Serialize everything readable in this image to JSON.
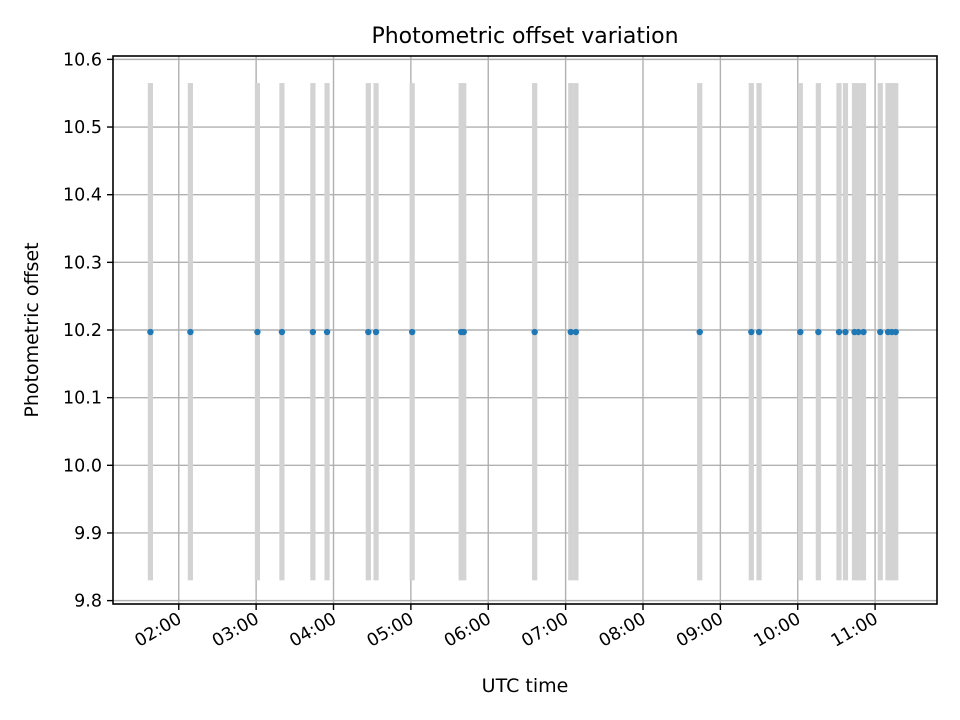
{
  "chart_data": {
    "type": "scatter",
    "title": "Photometric offset variation",
    "xlabel": "UTC time",
    "ylabel": "Photometric offset",
    "x_axis_type": "time",
    "xlim": [
      "01:09",
      "11:48"
    ],
    "ylim": [
      9.795,
      10.605
    ],
    "x_ticks": [
      "02:00",
      "03:00",
      "04:00",
      "05:00",
      "06:00",
      "07:00",
      "08:00",
      "09:00",
      "10:00",
      "11:00"
    ],
    "y_ticks": [
      9.8,
      9.9,
      10.0,
      10.1,
      10.2,
      10.3,
      10.4,
      10.5,
      10.6
    ],
    "grid": true,
    "point_color": "#1f77b4",
    "band_color": "#d3d3d3",
    "band_range": [
      9.83,
      10.565
    ],
    "times": [
      "01:38",
      "02:09",
      "03:01",
      "03:20",
      "03:44",
      "03:55",
      "04:27",
      "04:33",
      "05:01",
      "05:39",
      "05:41",
      "06:36",
      "07:04",
      "07:08",
      "08:44",
      "09:24",
      "09:30",
      "10:02",
      "10:16",
      "10:32",
      "10:37",
      "10:44",
      "10:47",
      "10:51",
      "11:04",
      "11:10",
      "11:13",
      "11:16"
    ],
    "values": [
      10.197,
      10.197,
      10.197,
      10.197,
      10.197,
      10.197,
      10.197,
      10.197,
      10.197,
      10.197,
      10.197,
      10.197,
      10.197,
      10.197,
      10.197,
      10.197,
      10.197,
      10.197,
      10.197,
      10.197,
      10.197,
      10.197,
      10.197,
      10.197,
      10.197,
      10.197,
      10.197,
      10.197
    ]
  }
}
